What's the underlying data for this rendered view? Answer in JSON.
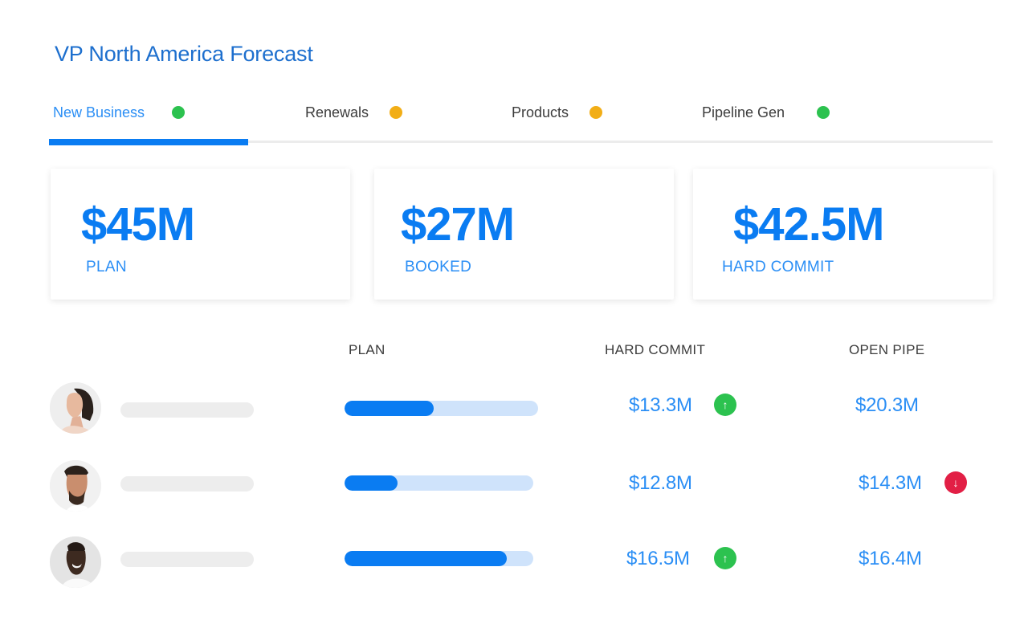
{
  "header": {
    "title": "VP North America Forecast"
  },
  "tabs": [
    {
      "label": "New Business",
      "status_color": "#2cc24f",
      "active": true
    },
    {
      "label": "Renewals",
      "status_color": "#f2ae16",
      "active": false
    },
    {
      "label": "Products",
      "status_color": "#f2ae16",
      "active": false
    },
    {
      "label": "Pipeline Gen",
      "status_color": "#2cc24f",
      "active": false
    }
  ],
  "summary_cards": [
    {
      "value": "$45M",
      "label": "PLAN"
    },
    {
      "value": "$27M",
      "label": "BOOKED"
    },
    {
      "value": "$42.5M",
      "label": "HARD COMMIT"
    }
  ],
  "table": {
    "columns": {
      "plan": "PLAN",
      "hard_commit": "HARD COMMIT",
      "open_pipe": "OPEN PIPE"
    },
    "rows": [
      {
        "avatar": "woman-profile-photo",
        "plan_progress": 0.46,
        "hard_commit": "$13.3M",
        "hard_commit_trend": "up",
        "open_pipe": "$20.3M",
        "open_pipe_trend": null
      },
      {
        "avatar": "bearded-man-photo",
        "plan_progress": 0.28,
        "hard_commit": "$12.8M",
        "hard_commit_trend": null,
        "open_pipe": "$14.3M",
        "open_pipe_trend": "down"
      },
      {
        "avatar": "smiling-man-photo",
        "plan_progress": 0.86,
        "hard_commit": "$16.5M",
        "hard_commit_trend": "up",
        "open_pipe": "$16.4M",
        "open_pipe_trend": null
      }
    ]
  },
  "icons": {
    "trend_up": "↑",
    "trend_down": "↓"
  },
  "colors": {
    "accent": "#0a7cf2",
    "title": "#1d6fce",
    "up": "#2cc24f",
    "down": "#e21f45",
    "warning": "#f2ae16"
  }
}
